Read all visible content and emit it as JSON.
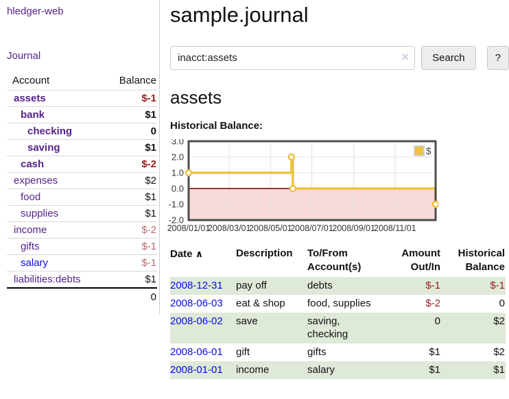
{
  "colors": {
    "link_purple": "#55228b",
    "link_blue": "#0a0aee",
    "negative": "#951d1d",
    "negative_muted": "#b26b6b",
    "row_green": "#dee9d8",
    "chart_line_gold": "#edc240"
  },
  "sidebar": {
    "app_title": "hledger-web",
    "journal_label": "Journal",
    "accounts_header": {
      "account": "Account",
      "balance": "Balance"
    },
    "accounts": [
      {
        "name": "assets",
        "level": 0,
        "bold": true,
        "balance": "$-1"
      },
      {
        "name": "bank",
        "level": 1,
        "bold": true,
        "balance": "$1"
      },
      {
        "name": "checking",
        "level": 2,
        "bold": true,
        "balance": "0"
      },
      {
        "name": "saving",
        "level": 2,
        "bold": true,
        "balance": "$1"
      },
      {
        "name": "cash",
        "level": 1,
        "bold": true,
        "balance": "$-2"
      },
      {
        "name": "expenses",
        "level": 0,
        "bold": false,
        "balance": "$2"
      },
      {
        "name": "food",
        "level": 1,
        "bold": false,
        "balance": "$1"
      },
      {
        "name": "supplies",
        "level": 1,
        "bold": false,
        "balance": "$1"
      },
      {
        "name": "income",
        "level": 0,
        "bold": false,
        "balance": "$-2"
      },
      {
        "name": "gifts",
        "level": 1,
        "bold": false,
        "balance": "$-1"
      },
      {
        "name": "salary",
        "level": 1,
        "bold": false,
        "balance": "$-1",
        "link_variant": "blue"
      },
      {
        "name": "liabilities:debts",
        "level": 0,
        "bold": false,
        "balance": "$1"
      }
    ],
    "total": "0"
  },
  "main": {
    "title": "sample.journal",
    "search": {
      "value": "inacct:assets",
      "clear_icon": "×",
      "button_label": "Search",
      "help_label": "?"
    },
    "account_heading": "assets",
    "chart_label": "Historical Balance:"
  },
  "register": {
    "headers": {
      "date": "Date",
      "sort_icon": "∧",
      "description": "Description",
      "accounts_line1": "To/From",
      "accounts_line2": "Account(s)",
      "amount_line1": "Amount",
      "amount_line2": "Out/In",
      "balance_line1": "Historical",
      "balance_line2": "Balance"
    },
    "rows": [
      {
        "date": "2008-12-31",
        "description": "pay off",
        "accounts": "debts",
        "amount": "$-1",
        "balance": "$-1"
      },
      {
        "date": "2008-06-03",
        "description": "eat & shop",
        "accounts": "food, supplies",
        "amount": "$-2",
        "balance": "0"
      },
      {
        "date": "2008-06-02",
        "description": "save",
        "accounts": "saving, checking",
        "amount": "0",
        "balance": "$2"
      },
      {
        "date": "2008-06-01",
        "description": "gift",
        "accounts": "gifts",
        "amount": "$1",
        "balance": "$2"
      },
      {
        "date": "2008-01-01",
        "description": "income",
        "accounts": "salary",
        "amount": "$1",
        "balance": "$1"
      }
    ]
  },
  "chart_data": {
    "type": "line",
    "step": true,
    "title": "Historical Balance",
    "series": [
      {
        "name": "$",
        "color": "#edc240",
        "points": [
          {
            "date": "2008-01-01",
            "value": 1
          },
          {
            "date": "2008-06-01",
            "value": 2
          },
          {
            "date": "2008-06-03",
            "value": 0
          },
          {
            "date": "2008-12-31",
            "value": -1
          }
        ]
      }
    ],
    "xlim": [
      "2008-01-01",
      "2008-12-31"
    ],
    "ylim": [
      -2,
      3
    ],
    "y_ticks": [
      3,
      2,
      1,
      0,
      -1,
      -2
    ],
    "x_ticks": [
      {
        "date": "2008-01-01",
        "label": "2008/01/01"
      },
      {
        "date": "2008-03-01",
        "label": "2008/03/01"
      },
      {
        "date": "2008-05-01",
        "label": "2008/05/01"
      },
      {
        "date": "2008-07-01",
        "label": "2008/07/01"
      },
      {
        "date": "2008-09-01",
        "label": "2008/09/01"
      },
      {
        "date": "2008-11-01",
        "label": "2008/11/01"
      }
    ],
    "legend": {
      "position": "top-right",
      "label": "$"
    },
    "grid": true,
    "negative_region_color": "#f9dada",
    "zero_line_color": "#8b1a1a"
  }
}
